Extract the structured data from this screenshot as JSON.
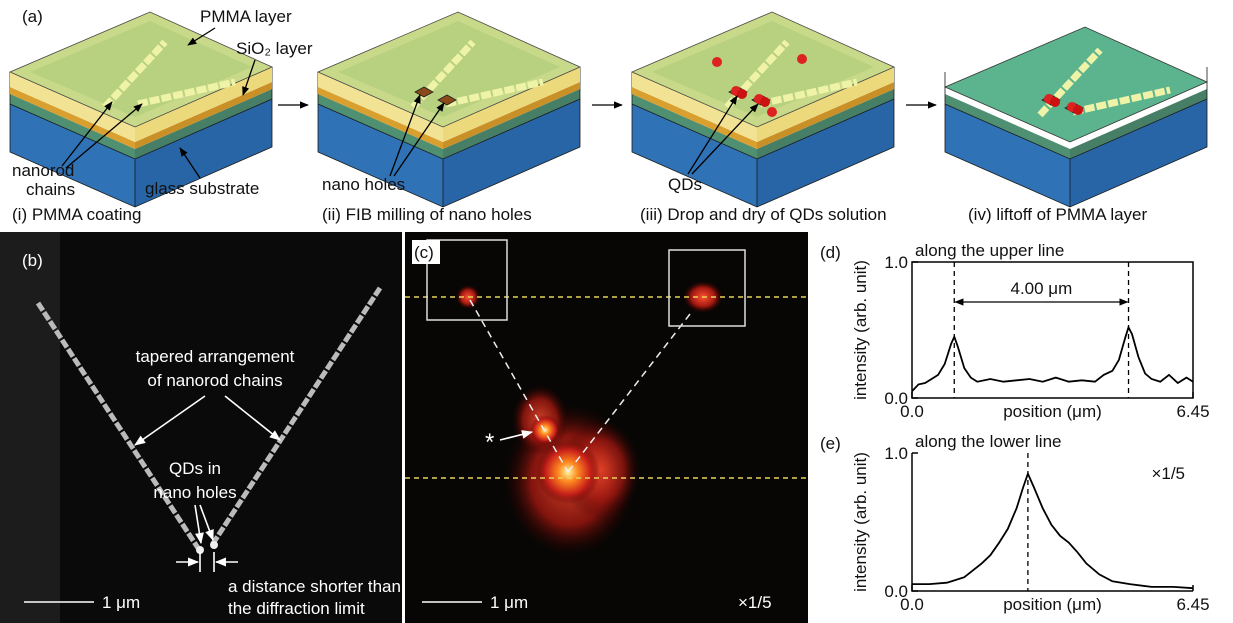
{
  "panel_a": {
    "label": "(a)",
    "pmma_layer": "PMMA layer",
    "sio2_layer": "SiO₂ layer",
    "nanorod_chains": [
      "nanorod",
      "chains"
    ],
    "glass_substrate": "glass substrate",
    "nano_holes": "nano holes",
    "qds": "QDs",
    "captions": [
      "(i) PMMA coating",
      "(ii) FIB milling of nano holes",
      "(iii) Drop and dry of QDs solution",
      "(iv) liftoff of PMMA layer"
    ]
  },
  "panel_b": {
    "label": "(b)",
    "tapered": [
      "tapered arrangement",
      "of nanorod chains"
    ],
    "qds_in_holes": [
      "QDs in",
      "nano holes"
    ],
    "distance": [
      "a distance shorter than",
      "the diffraction limit"
    ],
    "scale_bar": "1 μm"
  },
  "panel_c": {
    "label": "(c)",
    "star": "*",
    "scale_bar": "1 μm",
    "factor": "×1/5"
  },
  "chart_data": [
    {
      "type": "line",
      "panel_label": "(d)",
      "title": "along the upper line",
      "ylabel": "intensity (arb. unit)",
      "xlabel": "position (μm)",
      "color": "#000000",
      "x": [
        0,
        0.15,
        0.3,
        0.45,
        0.6,
        0.75,
        0.9,
        0.97,
        1.05,
        1.2,
        1.35,
        1.5,
        1.8,
        2.1,
        2.4,
        2.7,
        3.0,
        3.3,
        3.6,
        3.9,
        4.2,
        4.4,
        4.6,
        4.75,
        4.9,
        4.97,
        5.05,
        5.2,
        5.35,
        5.5,
        5.7,
        5.9,
        6.1,
        6.3,
        6.45
      ],
      "values": [
        0.05,
        0.1,
        0.11,
        0.14,
        0.17,
        0.25,
        0.4,
        0.45,
        0.38,
        0.22,
        0.15,
        0.12,
        0.14,
        0.12,
        0.13,
        0.14,
        0.12,
        0.15,
        0.12,
        0.13,
        0.12,
        0.17,
        0.2,
        0.28,
        0.45,
        0.52,
        0.47,
        0.3,
        0.18,
        0.14,
        0.12,
        0.17,
        0.11,
        0.15,
        0.12
      ],
      "xlim": [
        0,
        6.45
      ],
      "ylim": [
        0,
        1
      ],
      "xticks": [
        {
          "value": 0,
          "label": "0.0"
        },
        6.45
      ],
      "yticks": [
        {
          "value": 0,
          "label": "0.0"
        },
        {
          "value": 1,
          "label": "1.0"
        }
      ],
      "markers": [
        0.97,
        4.97
      ],
      "annotation": "4.00 μm"
    },
    {
      "type": "line",
      "panel_label": "(e)",
      "title": "along the lower line",
      "ylabel": "intensity (arb. unit)",
      "xlabel": "position (μm)",
      "color": "#000000",
      "x": [
        0,
        0.4,
        0.8,
        1.0,
        1.2,
        1.4,
        1.6,
        1.8,
        2.0,
        2.2,
        2.4,
        2.55,
        2.66,
        2.8,
        3.0,
        3.2,
        3.4,
        3.6,
        3.8,
        4.0,
        4.3,
        4.6,
        5.0,
        5.5,
        6.0,
        6.45
      ],
      "values": [
        0.05,
        0.05,
        0.06,
        0.08,
        0.1,
        0.15,
        0.2,
        0.26,
        0.35,
        0.45,
        0.6,
        0.75,
        0.85,
        0.75,
        0.6,
        0.48,
        0.4,
        0.35,
        0.28,
        0.2,
        0.12,
        0.07,
        0.05,
        0.03,
        0.03,
        0.02
      ],
      "xlim": [
        0,
        6.45
      ],
      "ylim": [
        0,
        1
      ],
      "xticks": [
        {
          "value": 0,
          "label": "0.0"
        },
        6.45
      ],
      "yticks": [
        {
          "value": 0,
          "label": "0.0"
        },
        {
          "value": 1,
          "label": "1.0"
        }
      ],
      "markers": [
        2.66
      ],
      "annotation": "×1/5"
    }
  ]
}
